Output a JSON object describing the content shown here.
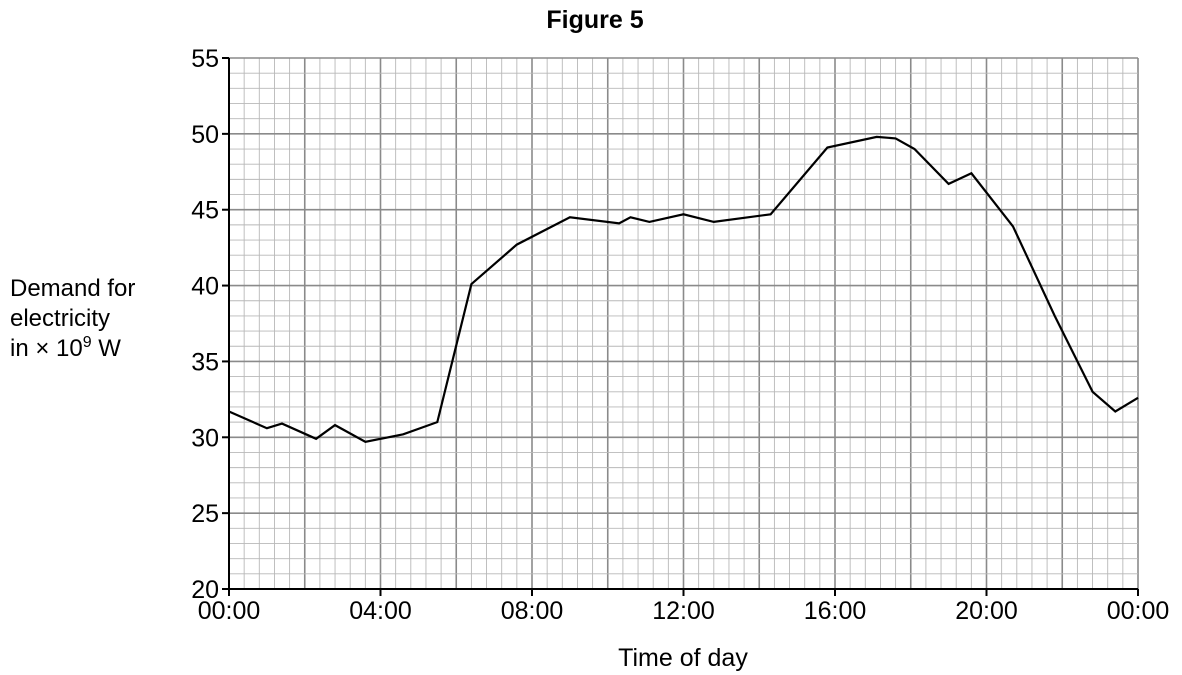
{
  "chart_data": {
    "type": "line",
    "title": "Figure 5",
    "xlabel": "Time of day",
    "ylabel": {
      "line1": "Demand for",
      "line2": "electricity",
      "line3_prefix": "in × 10",
      "line3_exponent": "9",
      "line3_suffix": " W"
    },
    "x_unit": "hours",
    "xlim": [
      0,
      24
    ],
    "ylim": [
      20,
      55
    ],
    "x_ticks": [
      0,
      4,
      8,
      12,
      16,
      20,
      24
    ],
    "x_tick_labels": [
      "00:00",
      "04:00",
      "08:00",
      "12:00",
      "16:00",
      "20:00",
      "00:00"
    ],
    "y_ticks": [
      20,
      25,
      30,
      35,
      40,
      45,
      50,
      55
    ],
    "y_tick_labels": [
      "20",
      "25",
      "30",
      "35",
      "40",
      "45",
      "50",
      "55"
    ],
    "grid": {
      "major_x_step": 2,
      "minor_x_step": 0.4,
      "major_y_step": 5,
      "minor_y_step": 1
    },
    "series": [
      {
        "x": [
          0,
          1.0,
          1.4,
          2.3,
          2.8,
          3.6,
          4.6,
          5.5,
          6.4,
          7.6,
          9.0,
          10.3,
          10.6,
          11.1,
          12.0,
          12.8,
          14.3,
          15.8,
          17.1,
          17.6,
          18.1,
          19.0,
          19.6,
          20.7,
          21.8,
          22.8,
          23.4,
          24.0
        ],
        "y": [
          31.7,
          30.6,
          30.9,
          29.9,
          30.8,
          29.7,
          30.2,
          31.0,
          40.1,
          42.7,
          44.5,
          44.1,
          44.5,
          44.2,
          44.7,
          44.2,
          44.7,
          49.1,
          49.8,
          49.7,
          49.0,
          46.7,
          47.4,
          43.9,
          38.0,
          33.0,
          31.7,
          32.6
        ]
      }
    ]
  }
}
